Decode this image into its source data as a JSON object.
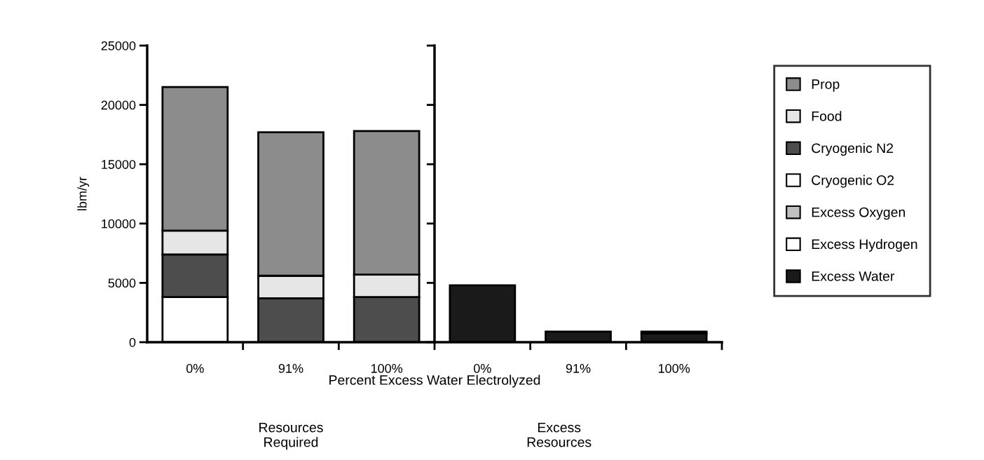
{
  "chart_data": {
    "type": "bar",
    "stacked": true,
    "ylabel": "lbm/yr",
    "xlabel": "Percent Excess Water Electrolyzed",
    "categories": [
      "0%",
      "91%",
      "100%",
      "0%",
      "91%",
      "100%"
    ],
    "ylim": [
      0,
      25000
    ],
    "yticks": [
      0,
      5000,
      10000,
      15000,
      20000,
      25000
    ],
    "legend": "right",
    "grid": false,
    "series": [
      {
        "name": "Excess Water",
        "color": "#1a1a1a",
        "values": [
          null,
          null,
          null,
          4800,
          900,
          750
        ]
      },
      {
        "name": "Excess Hydrogen",
        "color": "#ffffff",
        "values": [
          null,
          null,
          null,
          0,
          0,
          150
        ]
      },
      {
        "name": "Excess Oxygen",
        "color": "#bfbfbf",
        "values": [
          null,
          null,
          null,
          0,
          0,
          0
        ]
      },
      {
        "name": "Cryogenic O2",
        "color": "#ffffff",
        "values": [
          3800,
          0,
          0,
          null,
          null,
          null
        ]
      },
      {
        "name": "Cryogenic N2",
        "color": "#4d4d4d",
        "values": [
          3600,
          3700,
          3800,
          null,
          null,
          null
        ]
      },
      {
        "name": "Food",
        "color": "#e6e6e6",
        "values": [
          2000,
          1900,
          1900,
          null,
          null,
          null
        ]
      },
      {
        "name": "Prop",
        "color": "#8c8c8c",
        "values": [
          12100,
          12100,
          12100,
          null,
          null,
          null
        ]
      }
    ],
    "annotations": [
      "Resources\nRequired",
      "Excess\nResources"
    ]
  }
}
